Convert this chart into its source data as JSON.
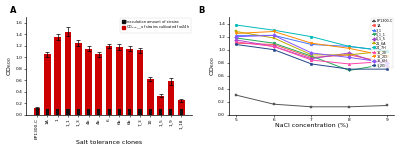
{
  "A": {
    "x_labels": [
      "EP1300-C",
      "1A",
      "1",
      "1_1",
      "1_3",
      "4b",
      "4b_1",
      "6",
      "6b",
      "6b_1",
      "7_3",
      "10",
      "1_5",
      "1_9",
      "1_18"
    ],
    "inoculation": [
      0.12,
      0.1,
      0.1,
      0.1,
      0.1,
      0.1,
      0.1,
      0.1,
      0.1,
      0.1,
      0.1,
      0.1,
      0.1,
      0.1,
      0.1
    ],
    "od600": [
      0.12,
      1.05,
      1.35,
      1.45,
      1.25,
      1.15,
      1.05,
      1.2,
      1.18,
      1.15,
      1.12,
      0.62,
      0.33,
      0.58,
      0.25
    ],
    "errors": [
      0.02,
      0.04,
      0.05,
      0.08,
      0.05,
      0.04,
      0.04,
      0.04,
      0.05,
      0.04,
      0.04,
      0.03,
      0.03,
      0.06,
      0.03
    ],
    "xlabel": "Salt tolerance clones",
    "ylabel": "OD$_{600}$",
    "legend_black": "Inoculation amount of strains",
    "legend_red": "OD$_{600}$__ of strains cultivated for24h",
    "bar_color_red": "#CC0000",
    "bar_color_black": "#111111",
    "ylim": [
      0,
      1.7
    ],
    "yticks": [
      0.0,
      0.2,
      0.4,
      0.6,
      0.8,
      1.0,
      1.2,
      1.4,
      1.6
    ]
  },
  "B": {
    "x": [
      5,
      6,
      7,
      8,
      9
    ],
    "series": {
      "EP1300-C": [
        0.3,
        0.16,
        0.12,
        0.12,
        0.14
      ],
      "1A": [
        1.1,
        1.08,
        0.88,
        0.92,
        0.8
      ],
      "3_1": [
        1.22,
        1.22,
        1.08,
        1.05,
        0.98
      ],
      "5_1_1": [
        1.18,
        1.1,
        0.9,
        0.68,
        0.78
      ],
      "5_1_5": [
        1.15,
        1.05,
        0.86,
        0.95,
        0.75
      ],
      "21_6A": [
        1.28,
        1.18,
        0.92,
        0.92,
        0.98
      ],
      "24_7H": [
        1.38,
        1.3,
        1.2,
        1.05,
        0.98
      ],
      "16_2E": [
        1.12,
        1.05,
        0.84,
        0.78,
        0.82
      ],
      "16_2D": [
        1.25,
        1.28,
        1.1,
        1.02,
        0.9
      ],
      "16_6H": [
        1.2,
        1.22,
        0.95,
        0.88,
        0.8
      ],
      "1_2G": [
        1.08,
        1.0,
        0.78,
        0.7,
        0.7
      ]
    },
    "colors": {
      "EP1300-C": "#555555",
      "1A": "#FF5555",
      "3_1": "#4477FF",
      "5_1_1": "#22AA55",
      "5_1_5": "#AA44CC",
      "21_6A": "#BBAA00",
      "24_7H": "#00BBBB",
      "16_2E": "#FF44AA",
      "16_2D": "#FF8800",
      "16_6H": "#8855FF",
      "1_2G": "#224488"
    },
    "markers": {
      "EP1300-C": "s",
      "1A": "o",
      "3_1": "^",
      "5_1_1": "v",
      "5_1_5": "D",
      "21_6A": "s",
      "24_7H": "o",
      "16_2E": "^",
      "16_2D": "v",
      "16_6H": "D",
      "1_2G": "p"
    },
    "xlabel": "NaCl concentration (%)",
    "ylabel": "OD$_{600}$",
    "ylim": [
      0.0,
      1.5
    ],
    "yticks": [
      0.0,
      0.2,
      0.4,
      0.6,
      0.8,
      1.0,
      1.2,
      1.4
    ]
  }
}
